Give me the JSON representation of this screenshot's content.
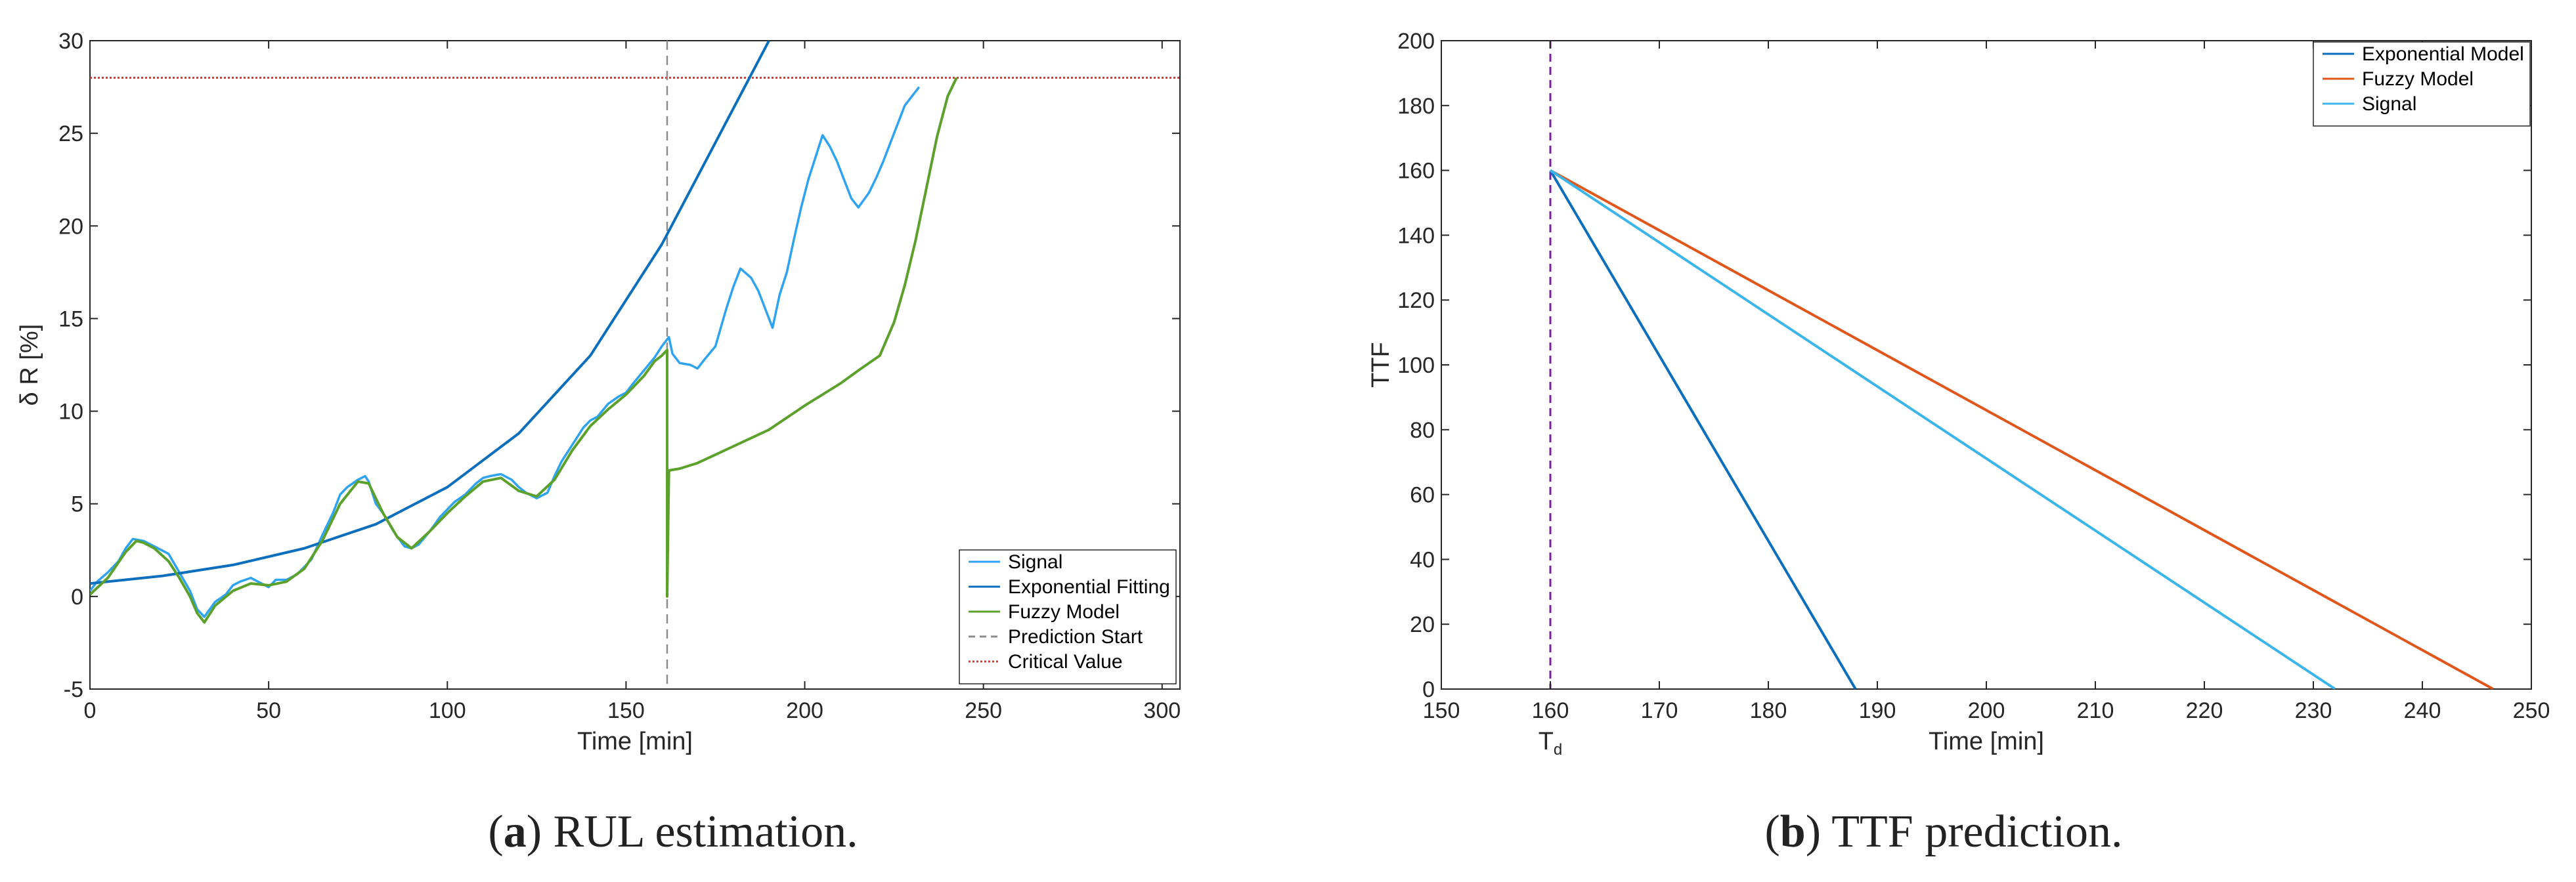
{
  "chart_data": [
    {
      "type": "line",
      "caption": {
        "letter": "a",
        "text": " RUL estimation."
      },
      "xlabel": "Time [min]",
      "ylabel": "δ R [%]",
      "xlim": [
        0,
        305
      ],
      "ylim": [
        -5,
        30
      ],
      "xticks": [
        0,
        50,
        100,
        150,
        200,
        250,
        300
      ],
      "yticks": [
        -5,
        0,
        5,
        10,
        15,
        20,
        25,
        30
      ],
      "grid": false,
      "legend_position": "bottom-right",
      "colors": {
        "signal": "#2ea3f2",
        "exp": "#0b6fbd",
        "fuzzy": "#5ca12b",
        "pred": "#8c8c8c",
        "crit": "#e8342a"
      },
      "series": [
        {
          "name": "Signal",
          "key": "signal",
          "points": [
            [
              0,
              0.3
            ],
            [
              2,
              0.8
            ],
            [
              5,
              1.3
            ],
            [
              8,
              1.9
            ],
            [
              10,
              2.6
            ],
            [
              12,
              3.1
            ],
            [
              15,
              3.0
            ],
            [
              18,
              2.7
            ],
            [
              20,
              2.5
            ],
            [
              22,
              2.3
            ],
            [
              25,
              1.3
            ],
            [
              28,
              0.3
            ],
            [
              30,
              -0.7
            ],
            [
              32,
              -1.1
            ],
            [
              35,
              -0.3
            ],
            [
              38,
              0.1
            ],
            [
              40,
              0.6
            ],
            [
              42,
              0.8
            ],
            [
              45,
              1.0
            ],
            [
              48,
              0.7
            ],
            [
              50,
              0.5
            ],
            [
              52,
              0.9
            ],
            [
              55,
              0.9
            ],
            [
              58,
              1.2
            ],
            [
              60,
              1.6
            ],
            [
              62,
              2.0
            ],
            [
              65,
              3.3
            ],
            [
              68,
              4.5
            ],
            [
              70,
              5.5
            ],
            [
              72,
              5.9
            ],
            [
              75,
              6.3
            ],
            [
              77,
              6.5
            ],
            [
              78,
              6.2
            ],
            [
              80,
              5.0
            ],
            [
              82,
              4.5
            ],
            [
              85,
              3.5
            ],
            [
              88,
              2.7
            ],
            [
              90,
              2.6
            ],
            [
              92,
              2.8
            ],
            [
              95,
              3.5
            ],
            [
              98,
              4.3
            ],
            [
              100,
              4.7
            ],
            [
              102,
              5.1
            ],
            [
              105,
              5.5
            ],
            [
              108,
              6.1
            ],
            [
              110,
              6.4
            ],
            [
              112,
              6.5
            ],
            [
              115,
              6.6
            ],
            [
              118,
              6.3
            ],
            [
              120,
              5.9
            ],
            [
              122,
              5.6
            ],
            [
              125,
              5.3
            ],
            [
              128,
              5.6
            ],
            [
              130,
              6.5
            ],
            [
              132,
              7.3
            ],
            [
              135,
              8.2
            ],
            [
              138,
              9.1
            ],
            [
              140,
              9.5
            ],
            [
              142,
              9.7
            ],
            [
              145,
              10.4
            ],
            [
              148,
              10.8
            ],
            [
              150,
              11.0
            ],
            [
              152,
              11.5
            ],
            [
              155,
              12.2
            ],
            [
              158,
              12.9
            ],
            [
              160,
              13.5
            ],
            [
              162,
              14.0
            ],
            [
              163,
              13.1
            ],
            [
              165,
              12.6
            ],
            [
              168,
              12.5
            ],
            [
              170,
              12.3
            ],
            [
              172,
              12.8
            ],
            [
              175,
              13.5
            ],
            [
              178,
              15.5
            ],
            [
              180,
              16.7
            ],
            [
              182,
              17.7
            ],
            [
              185,
              17.2
            ],
            [
              187,
              16.5
            ],
            [
              190,
              15.0
            ],
            [
              191,
              14.5
            ],
            [
              193,
              16.3
            ],
            [
              195,
              17.5
            ],
            [
              197,
              19.3
            ],
            [
              199,
              21.0
            ],
            [
              201,
              22.5
            ],
            [
              203,
              23.7
            ],
            [
              205,
              24.9
            ],
            [
              207,
              24.3
            ],
            [
              209,
              23.5
            ],
            [
              211,
              22.5
            ],
            [
              213,
              21.5
            ],
            [
              215,
              21.0
            ],
            [
              218,
              21.8
            ],
            [
              220,
              22.6
            ],
            [
              222,
              23.5
            ],
            [
              224,
              24.5
            ],
            [
              226,
              25.5
            ],
            [
              228,
              26.5
            ],
            [
              230,
              27.0
            ],
            [
              232,
              27.5
            ]
          ]
        },
        {
          "name": "Exponential Fitting",
          "key": "exp",
          "points": [
            [
              0,
              0.7
            ],
            [
              20,
              1.1
            ],
            [
              40,
              1.7
            ],
            [
              60,
              2.6
            ],
            [
              80,
              3.9
            ],
            [
              100,
              5.9
            ],
            [
              120,
              8.8
            ],
            [
              140,
              13.0
            ],
            [
              160,
              19.0
            ],
            [
              175,
              24.5
            ],
            [
              190,
              30.0
            ]
          ]
        },
        {
          "name": "Fuzzy Model",
          "key": "fuzzy",
          "points": [
            [
              0,
              0.1
            ],
            [
              5,
              1.0
            ],
            [
              10,
              2.4
            ],
            [
              13,
              3.0
            ],
            [
              15,
              2.9
            ],
            [
              18,
              2.6
            ],
            [
              22,
              1.9
            ],
            [
              25,
              1.0
            ],
            [
              28,
              0.0
            ],
            [
              30,
              -0.9
            ],
            [
              32,
              -1.4
            ],
            [
              35,
              -0.5
            ],
            [
              40,
              0.3
            ],
            [
              45,
              0.7
            ],
            [
              50,
              0.6
            ],
            [
              55,
              0.8
            ],
            [
              60,
              1.5
            ],
            [
              65,
              3.0
            ],
            [
              70,
              5.0
            ],
            [
              75,
              6.2
            ],
            [
              78,
              6.1
            ],
            [
              82,
              4.5
            ],
            [
              86,
              3.2
            ],
            [
              90,
              2.6
            ],
            [
              95,
              3.5
            ],
            [
              100,
              4.5
            ],
            [
              105,
              5.4
            ],
            [
              110,
              6.2
            ],
            [
              115,
              6.4
            ],
            [
              120,
              5.7
            ],
            [
              125,
              5.4
            ],
            [
              130,
              6.3
            ],
            [
              135,
              7.9
            ],
            [
              140,
              9.2
            ],
            [
              145,
              10.1
            ],
            [
              150,
              10.9
            ],
            [
              155,
              11.9
            ],
            [
              158,
              12.7
            ],
            [
              160,
              13.0
            ],
            [
              161.5,
              13.3
            ],
            [
              161.5,
              0.0
            ],
            [
              162,
              6.8
            ],
            [
              165,
              6.9
            ],
            [
              170,
              7.2
            ],
            [
              180,
              8.1
            ],
            [
              190,
              9.0
            ],
            [
              200,
              10.3
            ],
            [
              205,
              10.9
            ],
            [
              210,
              11.5
            ],
            [
              215,
              12.2
            ],
            [
              221,
              13.0
            ],
            [
              225,
              14.8
            ],
            [
              228,
              16.8
            ],
            [
              231,
              19.2
            ],
            [
              234,
              22.0
            ],
            [
              237,
              24.8
            ],
            [
              240,
              27.0
            ],
            [
              242.5,
              28.0
            ]
          ]
        }
      ],
      "prediction_start_x": 161.5,
      "critical_value": 28,
      "legend": [
        "Signal",
        "Exponential Fitting",
        "Fuzzy Model",
        "Prediction Start",
        "Critical Value"
      ]
    },
    {
      "type": "line",
      "caption": {
        "letter": "b",
        "text": " TTF prediction."
      },
      "xlabel": "Time [min]",
      "ylabel": "TTF",
      "xlim": [
        150,
        250
      ],
      "ylim": [
        0,
        200
      ],
      "xticks": [
        150,
        160,
        170,
        180,
        190,
        200,
        210,
        220,
        230,
        240,
        250
      ],
      "yticks": [
        0,
        20,
        40,
        60,
        80,
        100,
        120,
        140,
        160,
        180,
        200
      ],
      "td_label": {
        "base": "T",
        "sub": "d"
      },
      "td_x": 160,
      "grid": false,
      "legend_position": "top-right",
      "colors": {
        "exp": "#0b6fbd",
        "fuzzy": "#e0561b",
        "signal": "#3cb6ea",
        "td": "#7b1fa2"
      },
      "series": [
        {
          "name": "Exponential Model",
          "key": "exp",
          "points": [
            [
              160,
              160
            ],
            [
              188,
              0
            ]
          ]
        },
        {
          "name": "Fuzzy Model",
          "key": "fuzzy",
          "points": [
            [
              160,
              160
            ],
            [
              246.5,
              0
            ]
          ]
        },
        {
          "name": "Signal",
          "key": "signal",
          "points": [
            [
              160,
              160
            ],
            [
              232,
              0
            ]
          ]
        }
      ]
    }
  ]
}
